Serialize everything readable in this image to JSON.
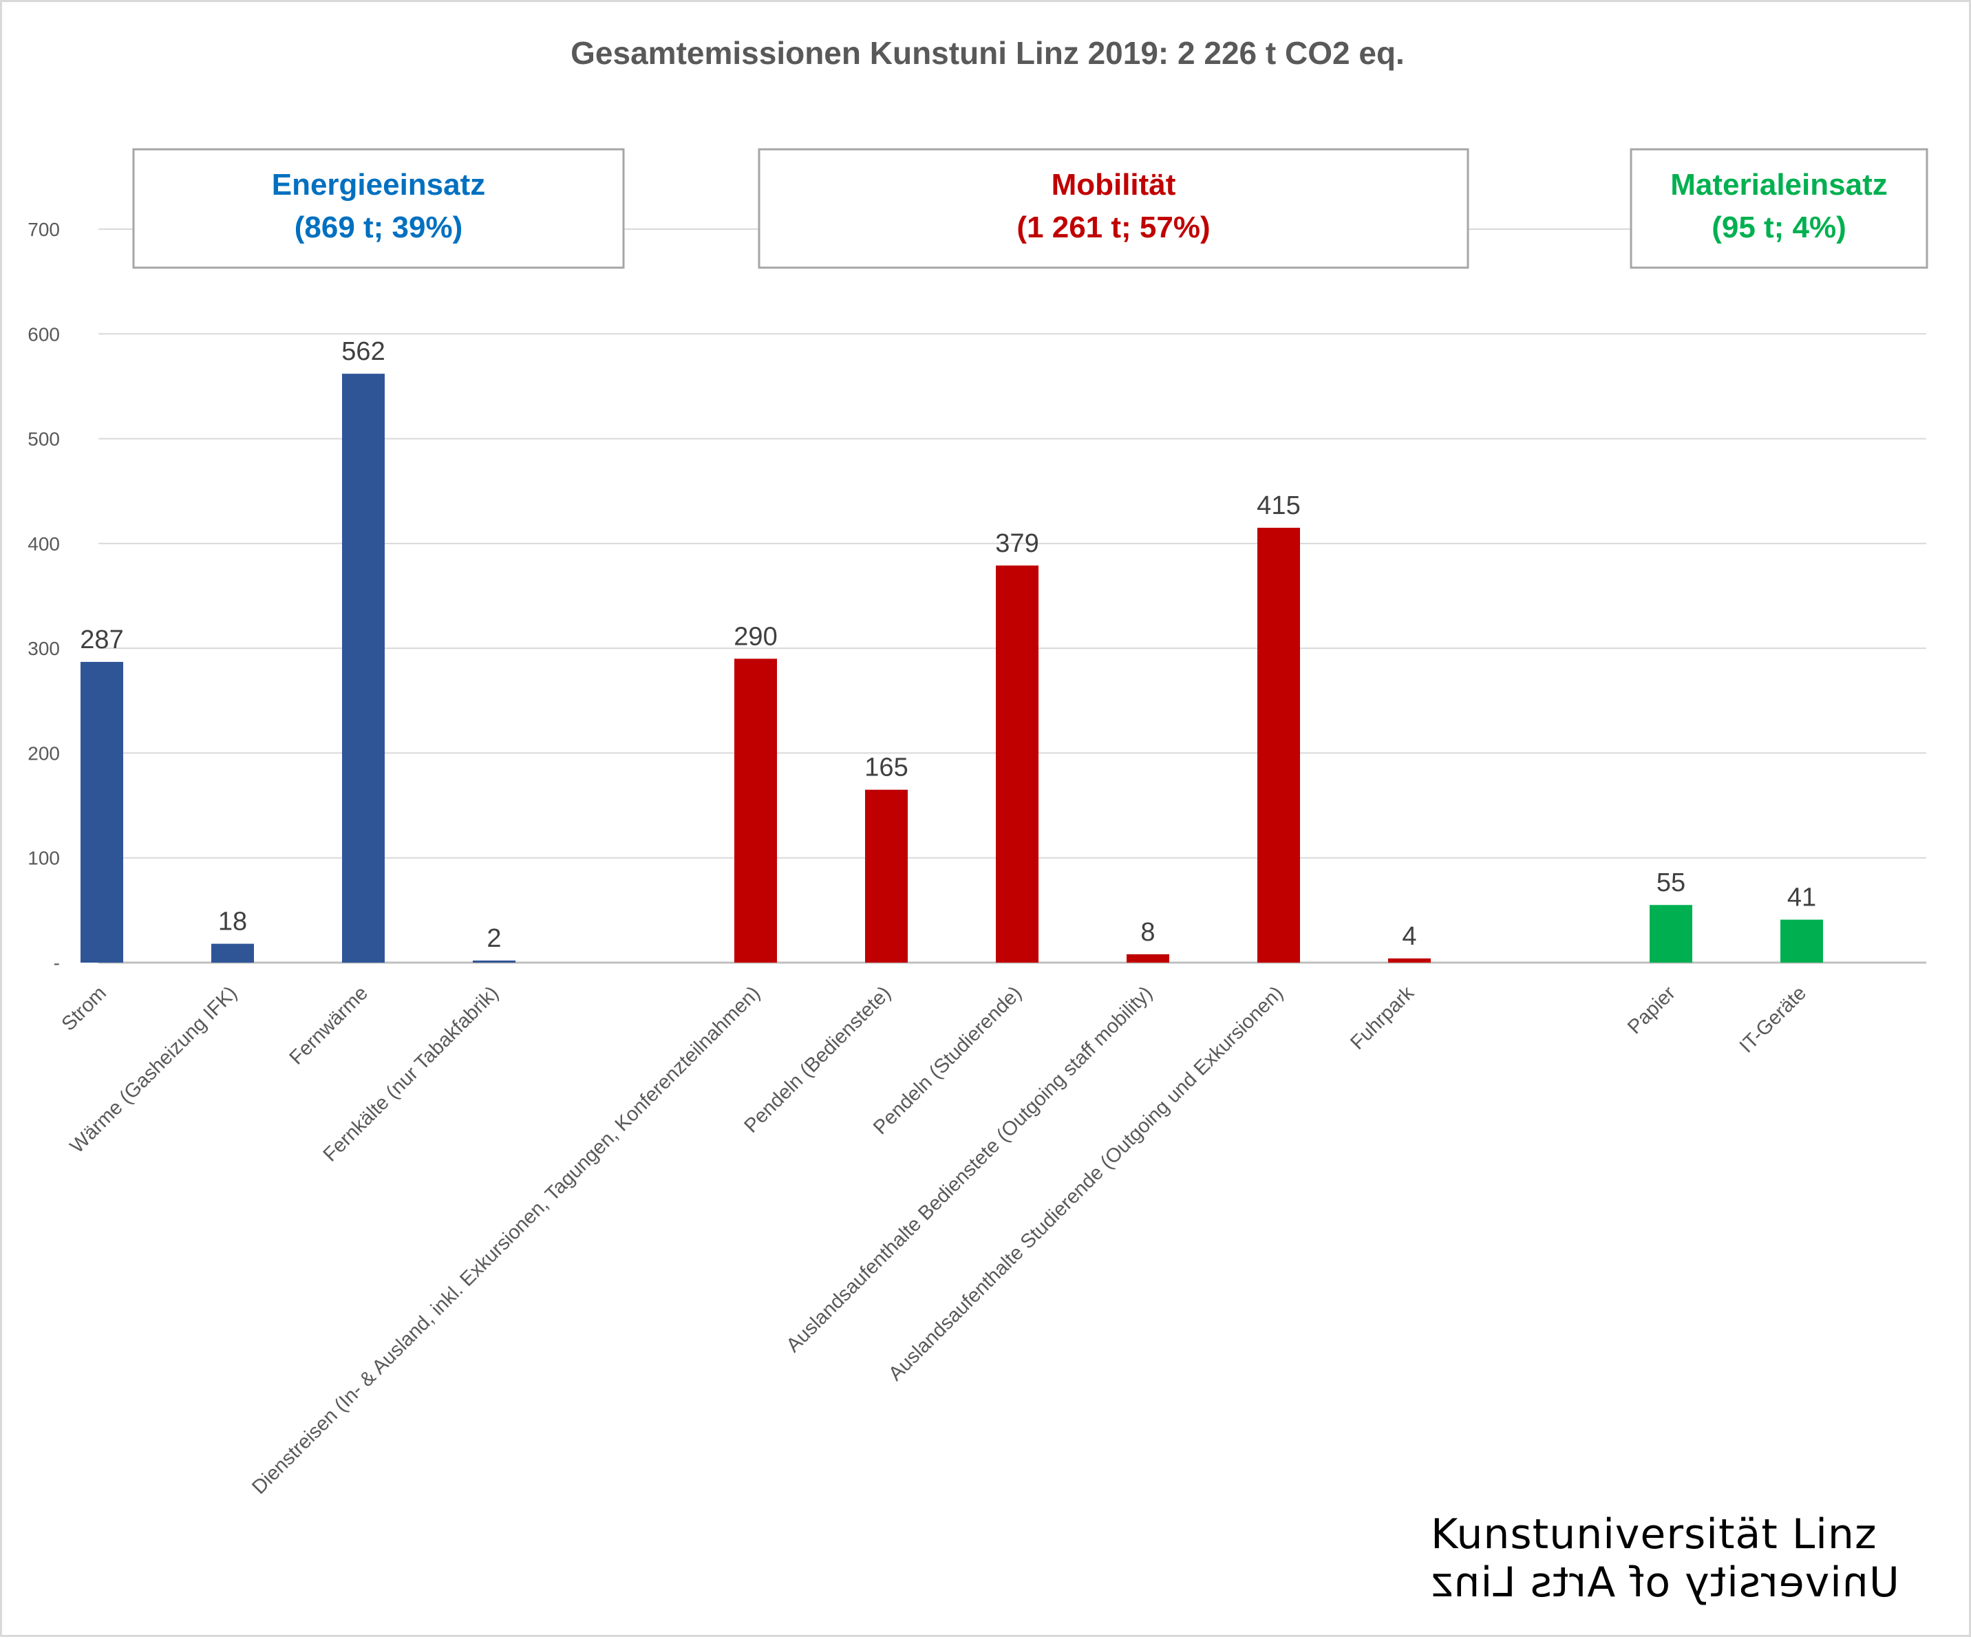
{
  "chart_data": {
    "type": "bar",
    "title": "Gesamtemissionen Kunstuni Linz 2019: 2 226 t CO2 eq.",
    "xlabel": "",
    "ylabel": "",
    "ylim": [
      0,
      700
    ],
    "y_ticks": [
      "-",
      "100",
      "200",
      "300",
      "400",
      "500",
      "600",
      "700"
    ],
    "grid": true,
    "groups": [
      {
        "name": "Energieeinsatz",
        "summary": "(869 t; 39%)",
        "color": "#2f5597",
        "label_color": "#0070c0",
        "categories": [
          "Strom",
          "Wärme (Gasheizung IFK)",
          "Fernwärme",
          "Fernkälte (nur Tabakfabrik)"
        ],
        "values": [
          287,
          18,
          562,
          2
        ]
      },
      {
        "name": "Mobilität",
        "summary": "(1 261 t; 57%)",
        "color": "#c00000",
        "label_color": "#c00000",
        "categories": [
          "Dienstreisen (In- & Ausland, inkl. Exkursionen, Tagungen, Konferenzteilnahmen)",
          "Pendeln (Bedienstete)",
          "Pendeln (Studierende)",
          "Auslandsaufenthalte Bedienstete (Outgoing staff mobility)",
          "Auslandsaufenthalte Studierende (Outgoing und Exkursionen)",
          "Fuhrpark"
        ],
        "values": [
          290,
          165,
          379,
          8,
          415,
          4
        ]
      },
      {
        "name": "Materialeinsatz",
        "summary": "(95 t; 4%)",
        "color": "#00b050",
        "label_color": "#00b050",
        "categories": [
          "Papier",
          "IT-Geräte"
        ],
        "values": [
          55,
          41
        ]
      }
    ]
  },
  "logo": {
    "line1": "Kunstuniversität Linz",
    "line2": "University of Arts Linz"
  }
}
